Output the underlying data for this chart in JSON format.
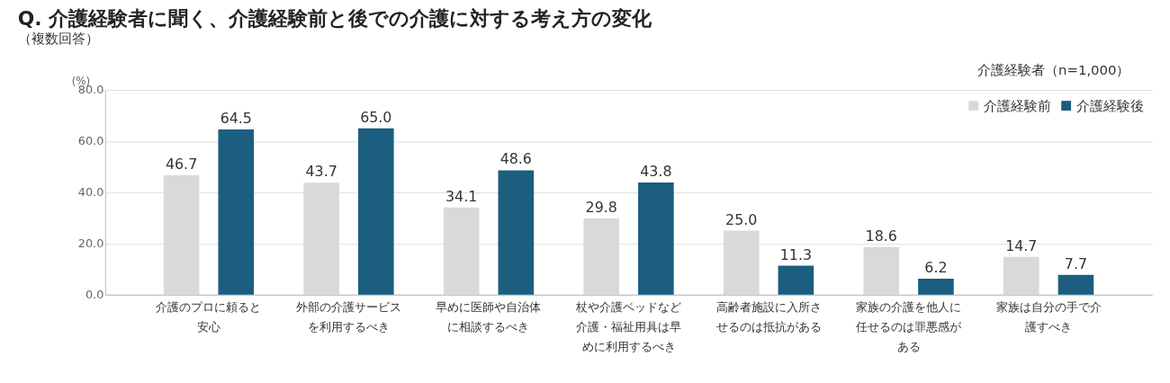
{
  "chart_data": {
    "type": "bar",
    "title": "Q.  介護経験者に聞く、介護経験前と後での介護に対する考え方の変化",
    "subtitle": "（複数回答）",
    "ylabel": "(%)",
    "categories": [
      "介護のプロに頼ると安心",
      "外部の介護サービスを利用するべき",
      "早めに医師や自治体に相談するべき",
      "杖や介護ベッドなど介護・福祉用具は早めに利用するべき",
      "高齢者施設に入所させるのは抵抗がある",
      "家族の介護を他人に任せるのは罪悪感がある",
      "家族は自分の手で介護すべき"
    ],
    "series": [
      {
        "name": "介護経験前",
        "color": "#d9d9d9",
        "values": [
          46.7,
          43.7,
          34.1,
          29.8,
          25.0,
          18.6,
          14.7
        ]
      },
      {
        "name": "介護経験後",
        "color": "#1b5e7f",
        "values": [
          64.5,
          65.0,
          48.6,
          43.8,
          11.3,
          6.2,
          7.7
        ]
      }
    ],
    "value_labels": [
      [
        "46.7",
        "43.7",
        "34.1",
        "29.8",
        "25.0",
        "18.6",
        "14.7"
      ],
      [
        "64.5",
        "65.0",
        "48.6",
        "43.8",
        "11.3",
        "6.2",
        "7.7"
      ]
    ],
    "ylim": [
      0,
      80
    ],
    "yticks": [
      {
        "value": 0,
        "label": "0.0"
      },
      {
        "value": 20,
        "label": "20.0"
      },
      {
        "value": 40,
        "label": "40.0"
      },
      {
        "value": 60,
        "label": "60.0"
      },
      {
        "value": 80,
        "label": "80.0"
      }
    ],
    "grid": "y",
    "legend": "top right",
    "annotations": [
      "介護経験者（n=1,000）"
    ]
  }
}
